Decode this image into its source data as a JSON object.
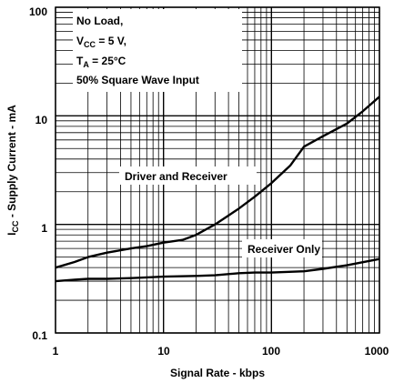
{
  "chart_data": {
    "type": "line",
    "scale": {
      "x": "log",
      "y": "log"
    },
    "xlim": [
      1,
      1000
    ],
    "ylim": [
      0.1,
      100
    ],
    "x_ticks": [
      "1",
      "10",
      "100",
      "1000"
    ],
    "y_ticks": [
      "0.1",
      "1",
      "10",
      "100"
    ],
    "xlabel": "Signal Rate - kbps",
    "ylabel": {
      "main": "I",
      "sub": "CC",
      "rest": " - Supply Current - mA"
    },
    "grid": "log-minor",
    "conditions": [
      {
        "main": "No Load,"
      },
      {
        "main": "V",
        "sub": "CC",
        "rest": " = 5 V,"
      },
      {
        "main": "T",
        "sub": "A",
        "rest": " = 25°C"
      },
      {
        "main": "50% Square Wave Input"
      }
    ],
    "series": [
      {
        "name": "Driver and Receiver",
        "x": [
          1,
          1.5,
          2,
          3,
          5,
          7,
          10,
          15,
          20,
          30,
          50,
          70,
          100,
          150,
          200,
          300,
          500,
          700,
          1000
        ],
        "y": [
          0.4,
          0.45,
          0.5,
          0.55,
          0.6,
          0.63,
          0.68,
          0.72,
          0.8,
          1.0,
          1.4,
          1.8,
          2.4,
          3.5,
          5.2,
          6.5,
          8.5,
          11,
          15
        ]
      },
      {
        "name": "Receiver Only",
        "x": [
          1,
          1.5,
          2,
          3,
          5,
          7,
          10,
          20,
          30,
          50,
          70,
          100,
          200,
          300,
          500,
          1000
        ],
        "y": [
          0.3,
          0.31,
          0.315,
          0.315,
          0.32,
          0.325,
          0.33,
          0.335,
          0.34,
          0.355,
          0.36,
          0.36,
          0.37,
          0.39,
          0.42,
          0.48
        ]
      }
    ]
  }
}
